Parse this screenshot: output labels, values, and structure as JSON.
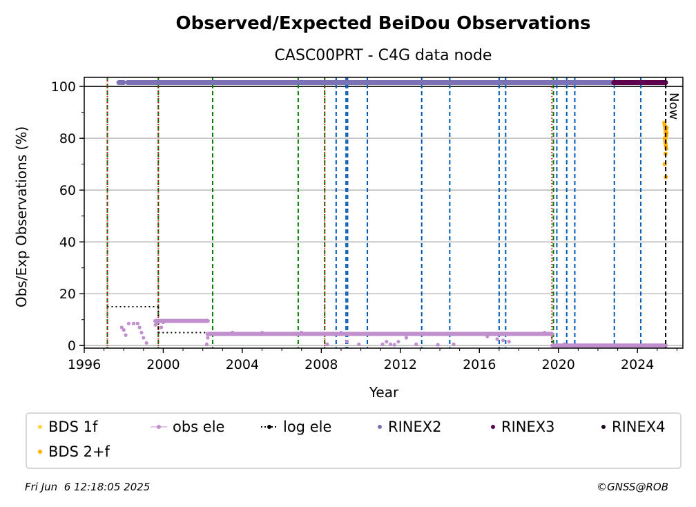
{
  "chart_data": {
    "type": "scatter",
    "title": "Observed/Expected BeiDou Observations",
    "subtitle": "CASC00PRT - C4G data node",
    "xlabel": "Year",
    "ylabel": "Obs/Exp Observations (%)",
    "xlim": [
      1996,
      2026.3
    ],
    "ylim": [
      -1,
      103.5
    ],
    "x_ticks": [
      1996,
      2000,
      2004,
      2008,
      2012,
      2016,
      2020,
      2024
    ],
    "x_tick_labels": [
      "1996",
      "2000",
      "2004",
      "2008",
      "2012",
      "2016",
      "2020",
      "2024"
    ],
    "y_ticks": [
      0,
      20,
      40,
      60,
      80,
      100
    ],
    "y_tick_labels": [
      "0",
      "20",
      "40",
      "60",
      "80",
      "100"
    ],
    "grid": "horizontal",
    "now_label": "Now",
    "now_x": 2025.43,
    "reference_line_y": 100,
    "event_lines": {
      "green": [
        1997.17,
        1999.75,
        2002.5,
        2006.83,
        2008.17,
        2019.75
      ],
      "red": [
        1997.17,
        1999.75,
        2008.17,
        2019.67
      ],
      "blue": [
        2008.75,
        2009.25,
        2009.33,
        2010.33,
        2013.08,
        2014.5,
        2017.0,
        2017.33,
        2019.92,
        2020.42,
        2020.83,
        2022.83,
        2024.17
      ]
    },
    "log_ele": [
      {
        "x": [
          1997.17,
          1999.75
        ],
        "y": 15
      },
      {
        "x": [
          1999.75,
          2002.5
        ],
        "y": 5
      },
      {
        "x": [
          2002.5,
          2019.67
        ],
        "y": 5
      },
      {
        "x": [
          2019.67,
          2025.43
        ],
        "y": 0
      }
    ],
    "series": [
      {
        "name": "BDS 1f",
        "color": "#ffd23f",
        "points": [
          [
            2025.4,
            84
          ],
          [
            2025.42,
            82
          ],
          [
            2025.44,
            80
          ],
          [
            2025.46,
            83
          ]
        ]
      },
      {
        "name": "BDS 2+f",
        "color": "#ffb000",
        "points": [
          [
            2025.36,
            86
          ],
          [
            2025.38,
            85
          ],
          [
            2025.4,
            84
          ],
          [
            2025.42,
            83
          ],
          [
            2025.44,
            82
          ],
          [
            2025.46,
            81
          ],
          [
            2025.38,
            80
          ],
          [
            2025.4,
            79
          ],
          [
            2025.42,
            78
          ],
          [
            2025.44,
            77
          ],
          [
            2025.46,
            76
          ],
          [
            2025.42,
            74
          ],
          [
            2025.38,
            70
          ],
          [
            2025.44,
            65
          ],
          [
            2025.48,
            84
          ],
          [
            2025.48,
            82
          ]
        ]
      },
      {
        "name": "obs ele",
        "color": "#c28fce",
        "points": [
          [
            1997.9,
            7
          ],
          [
            1998.0,
            6
          ],
          [
            1998.1,
            4
          ],
          [
            1998.25,
            8.5
          ],
          [
            1998.5,
            8.5
          ],
          [
            1998.7,
            8.5
          ],
          [
            1998.8,
            7
          ],
          [
            1998.9,
            5
          ],
          [
            1999.0,
            3
          ],
          [
            1999.15,
            1
          ],
          [
            1999.6,
            8
          ],
          [
            1999.7,
            9
          ],
          [
            1999.9,
            7
          ],
          [
            2000.0,
            9
          ],
          [
            2002.2,
            0.5
          ],
          [
            2002.25,
            3
          ],
          [
            2003.5,
            5
          ],
          [
            2005.0,
            5
          ],
          [
            2007.0,
            5
          ],
          [
            2008.3,
            0.5
          ],
          [
            2009.0,
            5
          ],
          [
            2009.3,
            1.5
          ],
          [
            2009.9,
            0.5
          ],
          [
            2011.1,
            0.5
          ],
          [
            2011.3,
            1.5
          ],
          [
            2011.5,
            0.5
          ],
          [
            2011.7,
            0.3
          ],
          [
            2011.9,
            1.5
          ],
          [
            2012.3,
            3
          ],
          [
            2012.8,
            0.5
          ],
          [
            2013.9,
            0.3
          ],
          [
            2014.7,
            0.5
          ],
          [
            2016.4,
            3.5
          ],
          [
            2016.9,
            2.5
          ],
          [
            2017.2,
            2
          ],
          [
            2017.5,
            1.5
          ],
          [
            2019.3,
            5
          ],
          [
            2020.3,
            0.5
          ],
          [
            2021.0,
            0
          ],
          [
            2022.5,
            0
          ],
          [
            2024.0,
            0
          ],
          [
            2025.3,
            0
          ]
        ]
      },
      {
        "name": "log ele",
        "color": "#000000",
        "points": []
      },
      {
        "name": "RINEX2",
        "color": "#7b72b6",
        "points": []
      },
      {
        "name": "RINEX3",
        "color": "#5e0050",
        "points": []
      },
      {
        "name": "RINEX4",
        "color": "#1a0020",
        "points": []
      }
    ],
    "rinex_bands": [
      {
        "name": "RINEX2",
        "color": "#7b72b6",
        "y": 101.5,
        "ranges": [
          [
            1997.75,
            1998.0
          ],
          [
            1998.2,
            1999.9
          ],
          [
            1999.65,
            2022.75
          ]
        ]
      },
      {
        "name": "RINEX3",
        "color": "#5e0050",
        "y": 101.5,
        "ranges": [
          [
            2022.8,
            2025.43
          ]
        ]
      }
    ],
    "obs_ele_segments": [
      {
        "x": [
          1999.6,
          2002.25
        ],
        "y": 9.5
      },
      {
        "x": [
          2002.25,
          2019.67
        ],
        "y": 4.5
      },
      {
        "x": [
          2019.7,
          2025.43
        ],
        "y": 0
      }
    ],
    "legend": {
      "placement": "bottom",
      "entries": [
        "BDS 1f",
        "obs ele",
        "log ele",
        "RINEX2",
        "RINEX3",
        "RINEX4",
        "BDS 2+f"
      ]
    }
  },
  "footer": {
    "timestamp": "Fri Jun  6 12:18:05 2025",
    "credit": "©GNSS@ROB"
  }
}
